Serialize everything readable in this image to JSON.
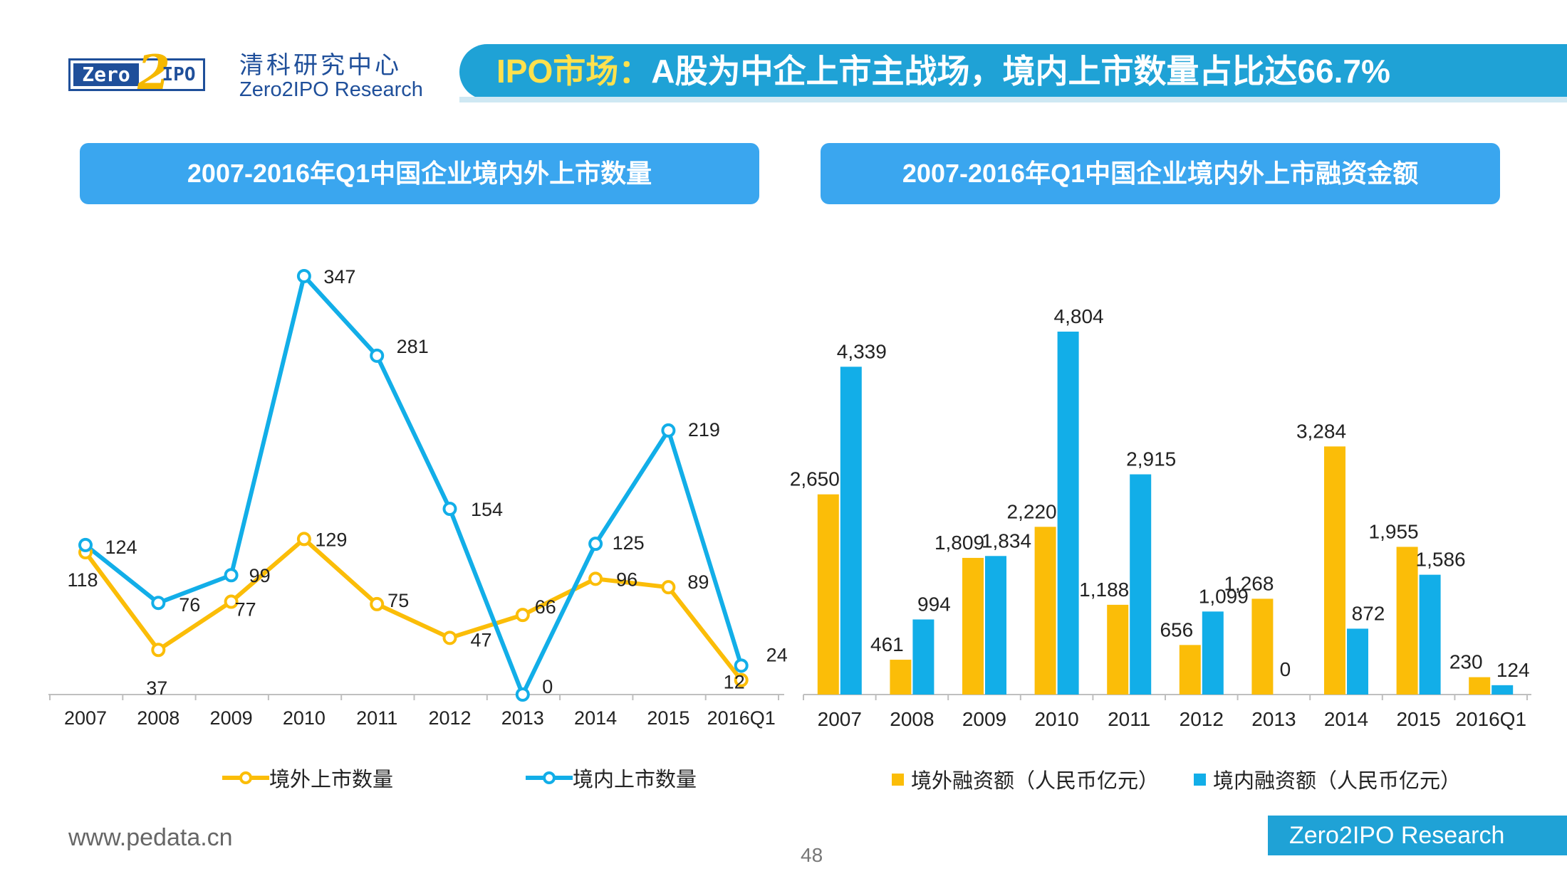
{
  "header": {
    "logo": {
      "zero": "Zero",
      "two": "2",
      "ipo": "IPO"
    },
    "org_cn": "清科研究中心",
    "org_en": "Zero2IPO Research",
    "title_prefix": "IPO市场：",
    "title_rest": "A股为中企上市主战场，境内上市数量占比达66.7%"
  },
  "footer": {
    "url": "www.pedata.cn",
    "page": "48",
    "brand": "Zero2IPO Research"
  },
  "colors": {
    "overseas": "#fbbd08",
    "domestic": "#12aee8",
    "domestic_bar": "#12aee8",
    "banner": "#1fa2d6",
    "header": "#3aa6ef"
  },
  "chart_data": [
    {
      "type": "line",
      "title": "2007-2016年Q1中国企业境内外上市数量",
      "categories": [
        "2007",
        "2008",
        "2009",
        "2010",
        "2011",
        "2012",
        "2013",
        "2014",
        "2015",
        "2016Q1"
      ],
      "series": [
        {
          "name": "境外上市数量",
          "values": [
            118,
            37,
            77,
            129,
            75,
            47,
            66,
            96,
            89,
            12
          ]
        },
        {
          "name": "境内上市数量",
          "values": [
            124,
            76,
            99,
            347,
            281,
            154,
            0,
            125,
            219,
            24
          ]
        }
      ],
      "ylim": [
        0,
        360
      ],
      "legend": "bottom"
    },
    {
      "type": "bar",
      "title": "2007-2016年Q1中国企业境内外上市融资金额",
      "categories": [
        "2007",
        "2008",
        "2009",
        "2010",
        "2011",
        "2012",
        "2013",
        "2014",
        "2015",
        "2016Q1"
      ],
      "series": [
        {
          "name": "境外融资额（人民币亿元）",
          "values": [
            2650,
            461,
            1809,
            2220,
            1188,
            656,
            1268,
            3284,
            1955,
            230
          ]
        },
        {
          "name": "境内融资额（人民币亿元）",
          "values": [
            4339,
            994,
            1834,
            4804,
            2915,
            1099,
            0,
            872,
            1586,
            124
          ]
        }
      ],
      "value_labels": {
        "overseas": [
          "2,650",
          "461",
          "1,809",
          "2,220",
          "1,188",
          "656",
          "1,268",
          "3,284",
          "1,955",
          "230"
        ],
        "domestic": [
          "4,339",
          "994",
          "1,834",
          "4,804",
          "2,915",
          "1,099",
          "0",
          "872",
          "1,586",
          "124"
        ]
      },
      "ylim": [
        0,
        5000
      ],
      "legend": "bottom"
    }
  ]
}
